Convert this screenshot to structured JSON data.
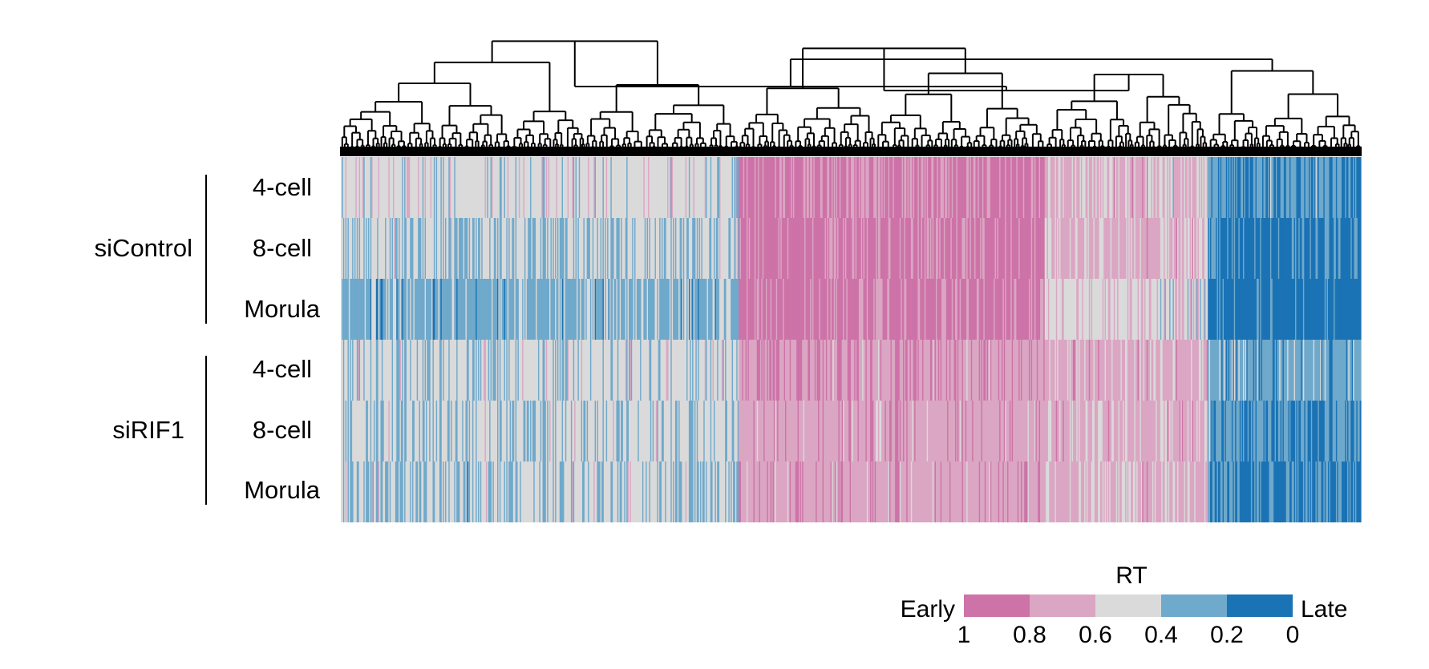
{
  "chart_data": {
    "type": "heatmap",
    "title": "",
    "value_label": "RT",
    "columns_clustered": true,
    "groups": [
      {
        "name": "siControl",
        "rows": [
          "4-cell",
          "8-cell",
          "Morula"
        ]
      },
      {
        "name": "siRIF1",
        "rows": [
          "4-cell",
          "8-cell",
          "Morula"
        ]
      }
    ],
    "column_clusters": [
      {
        "fraction": 0.39,
        "mean_rt": [
          0.5,
          0.42,
          0.33,
          0.47,
          0.44,
          0.42
        ]
      },
      {
        "fraction": 0.3,
        "mean_rt": [
          0.84,
          0.86,
          0.87,
          0.77,
          0.72,
          0.74
        ]
      },
      {
        "fraction": 0.16,
        "mean_rt": [
          0.62,
          0.64,
          0.55,
          0.68,
          0.66,
          0.64
        ]
      },
      {
        "fraction": 0.15,
        "mean_rt": [
          0.22,
          0.14,
          0.08,
          0.3,
          0.22,
          0.16
        ]
      }
    ],
    "dendrogram_top_split": {
      "left_clusters": [
        0,
        1,
        2
      ],
      "right_clusters": [
        3
      ]
    },
    "color_scale": {
      "label": "RT",
      "low_label": "Early",
      "high_label": "Late",
      "ticks": [
        "1",
        "0.8",
        "0.6",
        "0.4",
        "0.2",
        "0"
      ],
      "bins": [
        {
          "range": [
            1.0,
            0.8
          ],
          "color": "#cd73a8"
        },
        {
          "range": [
            0.8,
            0.6
          ],
          "color": "#dba6c3"
        },
        {
          "range": [
            0.6,
            0.4
          ],
          "color": "#dadada"
        },
        {
          "range": [
            0.4,
            0.2
          ],
          "color": "#6fa9cb"
        },
        {
          "range": [
            0.2,
            0.0
          ],
          "color": "#1a73b5"
        }
      ]
    }
  }
}
